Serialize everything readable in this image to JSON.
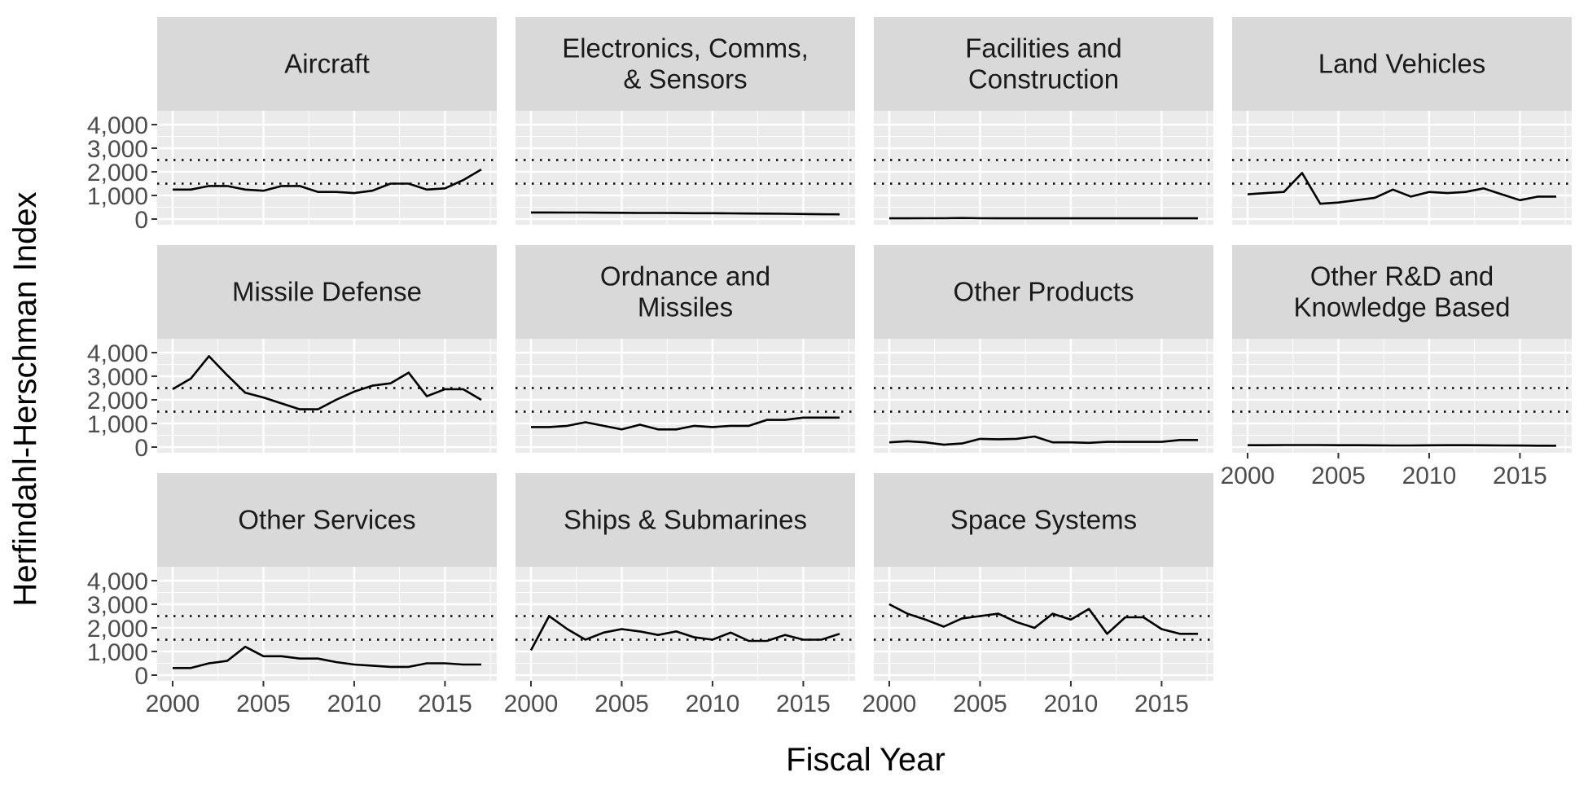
{
  "chart_data": {
    "type": "line",
    "layout": "faceted",
    "xlabel": "Fiscal Year",
    "ylabel": "Herfindahl-Herschman Index",
    "xlim": [
      2000,
      2017
    ],
    "ylim": [
      0,
      4000
    ],
    "x_ticks": [
      2000,
      2005,
      2010,
      2015
    ],
    "y_ticks": [
      0,
      1000,
      2000,
      3000,
      4000
    ],
    "y_tick_labels": [
      "0",
      "1,000",
      "2,000",
      "3,000",
      "4,000"
    ],
    "reference_lines": {
      "values": [
        1500,
        2500
      ],
      "style": "dotted"
    },
    "grid": true,
    "x": [
      2000,
      2001,
      2002,
      2003,
      2004,
      2005,
      2006,
      2007,
      2008,
      2009,
      2010,
      2011,
      2012,
      2013,
      2014,
      2015,
      2016,
      2017
    ],
    "panels": [
      {
        "title": [
          "Aircraft"
        ],
        "values": [
          1250,
          1250,
          1400,
          1400,
          1250,
          1200,
          1400,
          1400,
          1150,
          1150,
          1100,
          1200,
          1500,
          1500,
          1250,
          1300,
          1650,
          2100
        ]
      },
      {
        "title": [
          "Electronics, Comms,",
          "& Sensors"
        ],
        "values": [
          280,
          280,
          275,
          275,
          270,
          265,
          260,
          258,
          255,
          250,
          248,
          240,
          235,
          230,
          225,
          215,
          205,
          200
        ]
      },
      {
        "title": [
          "Facilities and",
          "Construction"
        ],
        "values": [
          30,
          32,
          35,
          35,
          45,
          35,
          32,
          30,
          30,
          30,
          30,
          30,
          30,
          30,
          30,
          30,
          30,
          30
        ]
      },
      {
        "title": [
          "Land Vehicles"
        ],
        "values": [
          1050,
          1100,
          1150,
          1950,
          650,
          700,
          800,
          900,
          1250,
          950,
          1150,
          1100,
          1150,
          1300,
          1050,
          800,
          950,
          950
        ]
      },
      {
        "title": [
          "Missile Defense"
        ],
        "values": [
          2450,
          2900,
          3850,
          3050,
          2300,
          2100,
          1850,
          1600,
          1600,
          2000,
          2350,
          2600,
          2700,
          3150,
          2150,
          2450,
          2450,
          2000
        ]
      },
      {
        "title": [
          "Ordnance and",
          "Missiles"
        ],
        "values": [
          850,
          850,
          900,
          1050,
          900,
          750,
          950,
          750,
          750,
          900,
          850,
          900,
          900,
          1150,
          1150,
          1250,
          1250,
          1250
        ]
      },
      {
        "title": [
          "Other Products"
        ],
        "values": [
          200,
          250,
          200,
          100,
          150,
          350,
          330,
          350,
          450,
          200,
          200,
          180,
          220,
          220,
          220,
          220,
          300,
          300
        ]
      },
      {
        "title": [
          "Other R&D and",
          "Knowledge Based"
        ],
        "values": [
          80,
          80,
          85,
          85,
          85,
          80,
          80,
          75,
          70,
          70,
          75,
          80,
          80,
          75,
          70,
          65,
          60,
          60
        ]
      },
      {
        "title": [
          "Other Services"
        ],
        "values": [
          300,
          300,
          500,
          600,
          1200,
          800,
          800,
          700,
          700,
          550,
          450,
          400,
          350,
          350,
          500,
          500,
          450,
          450
        ]
      },
      {
        "title": [
          "Ships & Submarines"
        ],
        "values": [
          1050,
          2500,
          1950,
          1500,
          1800,
          1950,
          1850,
          1700,
          1850,
          1600,
          1500,
          1800,
          1450,
          1450,
          1700,
          1500,
          1500,
          1750
        ]
      },
      {
        "title": [
          "Space Systems"
        ],
        "values": [
          3000,
          2600,
          2350,
          2050,
          2400,
          2500,
          2600,
          2250,
          2000,
          2600,
          2350,
          2800,
          1750,
          2450,
          2450,
          1950,
          1750,
          1750
        ]
      }
    ]
  }
}
